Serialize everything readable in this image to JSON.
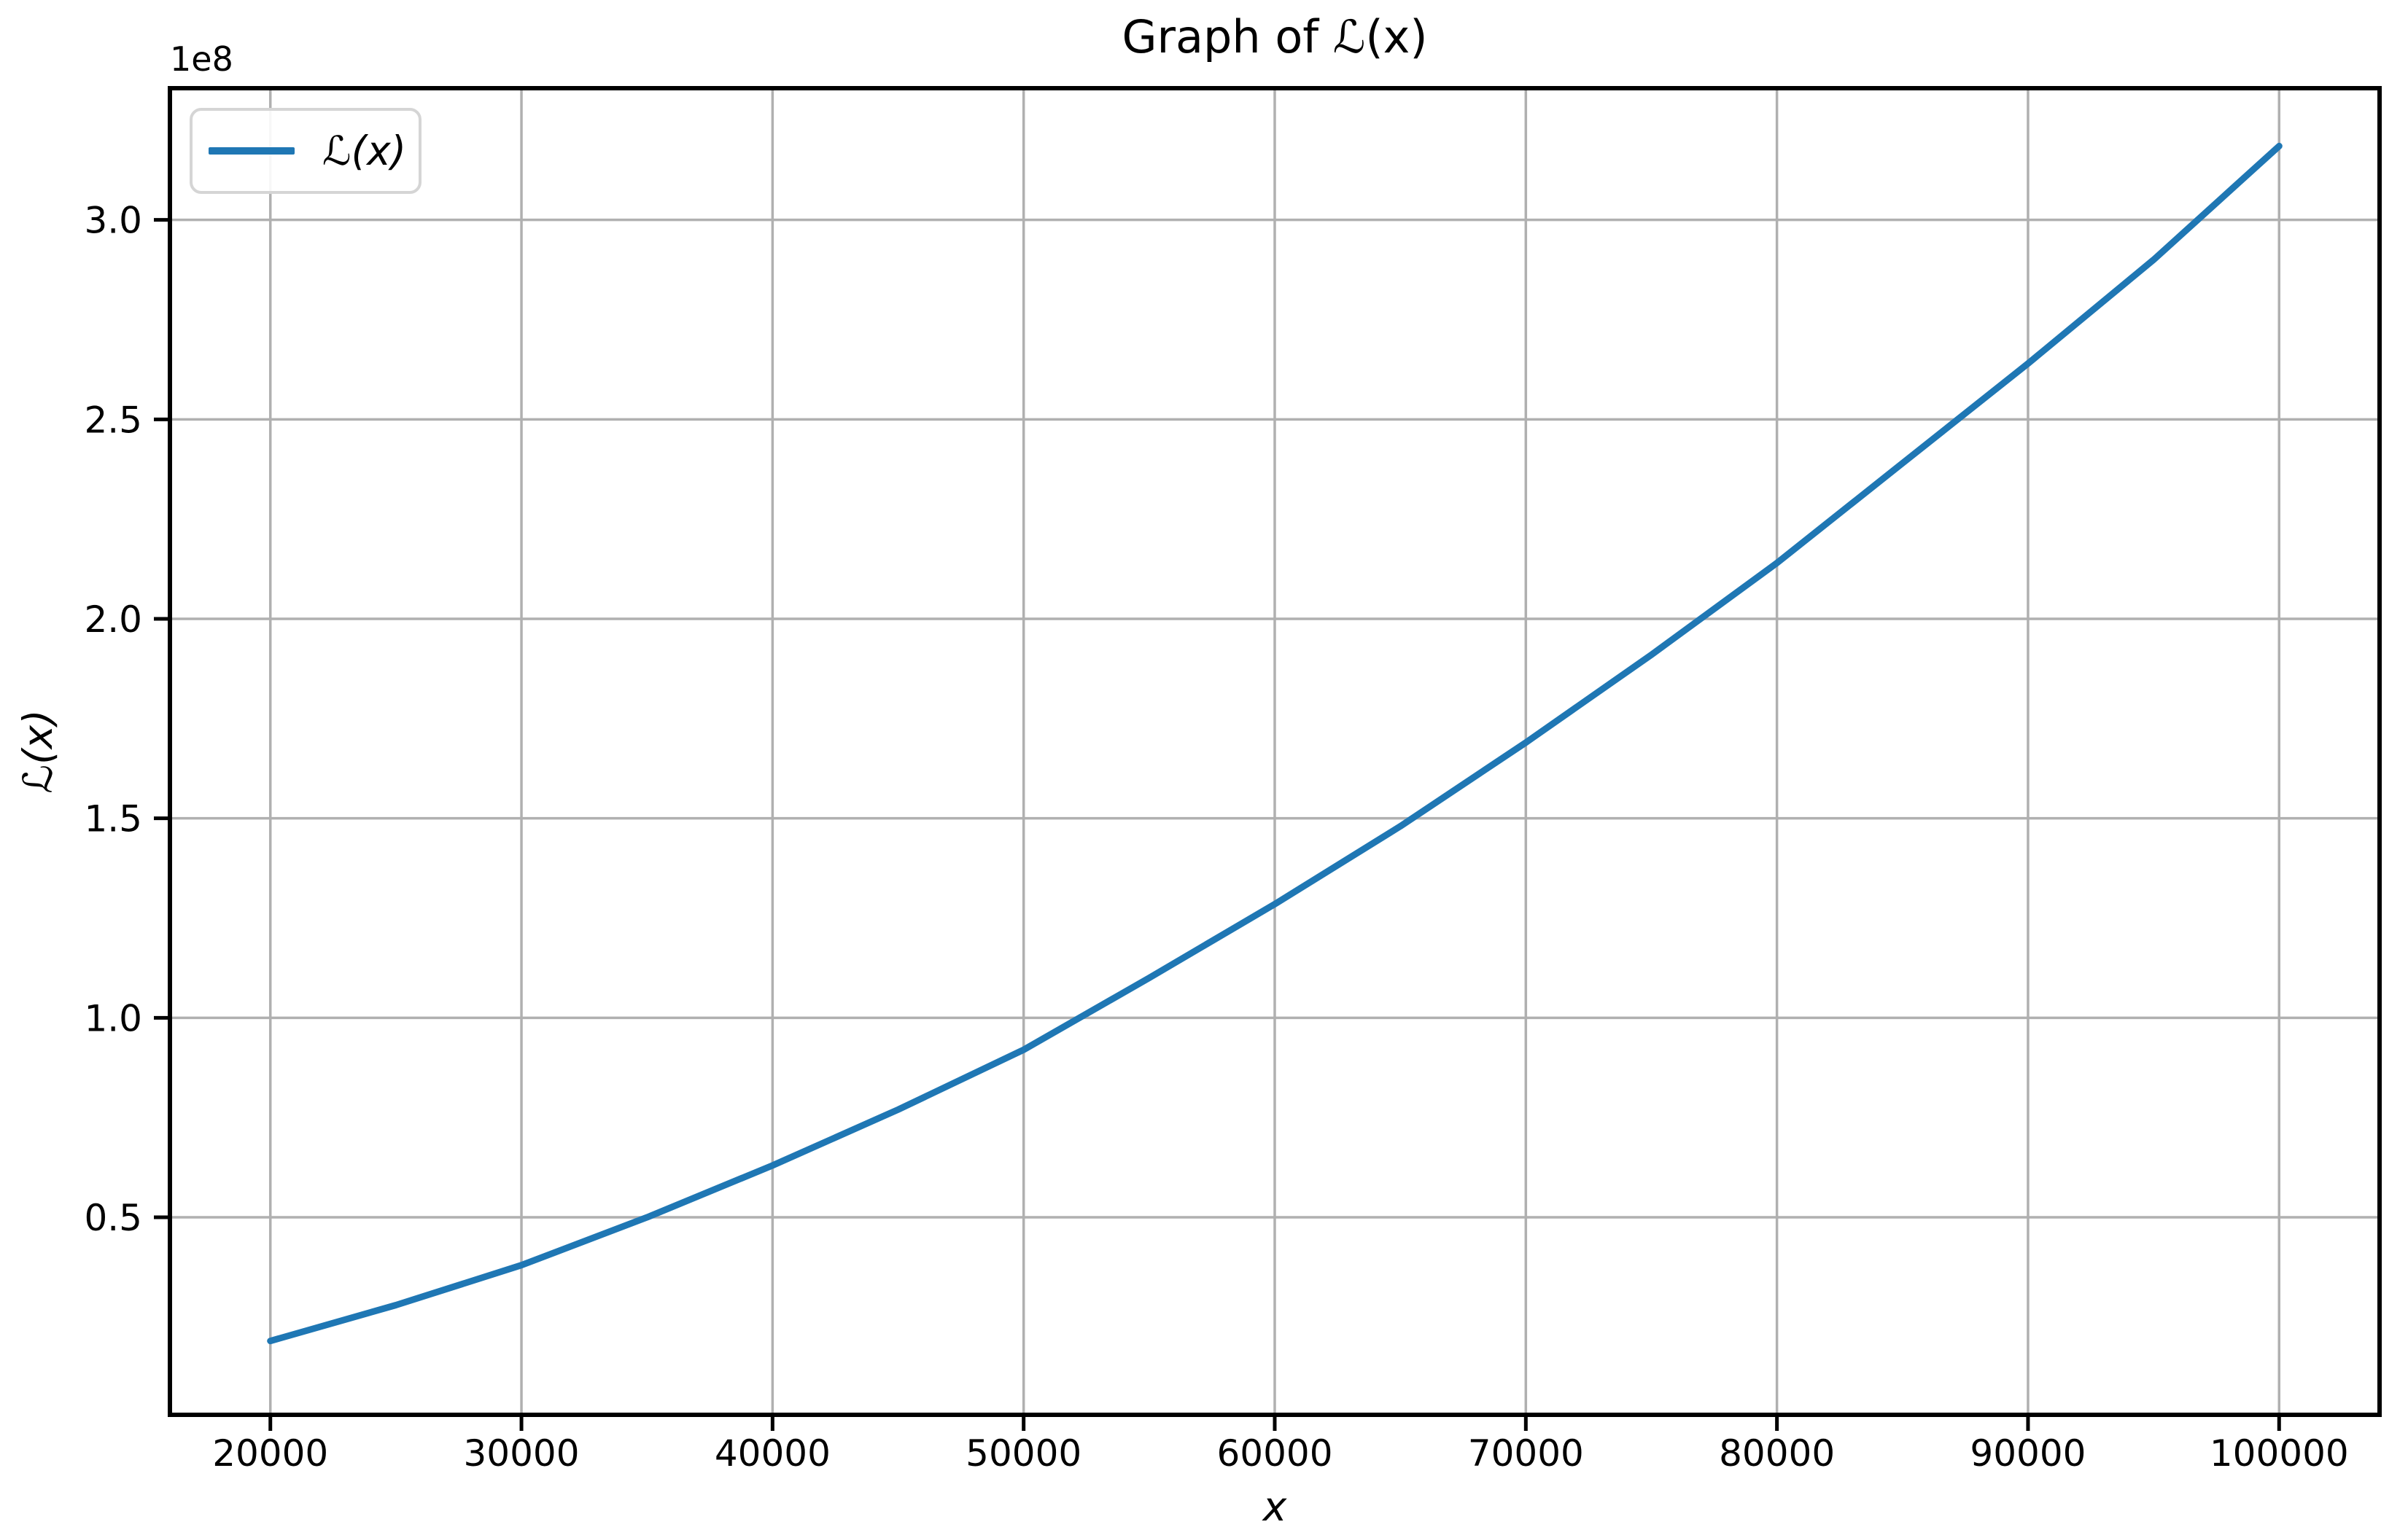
{
  "figure": {
    "title": "Graph of ℒ(x)",
    "offset_text": "1e8",
    "x_axis_label": "x",
    "y_axis_label": "ℒ(x)",
    "legend": {
      "position": "upper left",
      "entries": [
        {
          "label": "ℒ(x)",
          "color": "#1f77b4"
        }
      ]
    }
  },
  "colors": {
    "line": "#1f77b4",
    "grid": "#b0b0b0",
    "spine": "#000000",
    "text": "#000000",
    "legend_border": "#d5d5d5",
    "background": "#ffffff"
  },
  "chart_data": {
    "type": "line",
    "title": "Graph of ℒ(x)",
    "xlabel": "x",
    "ylabel": "ℒ(x)",
    "y_offset_factor": "1e8",
    "grid": true,
    "legend_position": "upper left",
    "xlim": [
      16000,
      104000
    ],
    "ylim": [
      500000,
      333000000
    ],
    "x_ticks": {
      "values": [
        20000,
        30000,
        40000,
        50000,
        60000,
        70000,
        80000,
        90000,
        100000
      ],
      "labels": [
        "20000",
        "30000",
        "40000",
        "50000",
        "60000",
        "70000",
        "80000",
        "90000",
        "100000"
      ]
    },
    "y_ticks": {
      "values": [
        50000000,
        100000000,
        150000000,
        200000000,
        250000000,
        300000000
      ],
      "labels": [
        "0.5",
        "1.0",
        "1.5",
        "2.0",
        "2.5",
        "3.0"
      ]
    },
    "series": [
      {
        "name": "ℒ(x)",
        "color": "#1f77b4",
        "x": [
          20000,
          25000,
          30000,
          35000,
          40000,
          45000,
          50000,
          55000,
          60000,
          65000,
          70000,
          75000,
          80000,
          85000,
          90000,
          95000,
          100000
        ],
        "y": [
          19000000,
          28000000,
          38000000,
          50000000,
          63000000,
          77000000,
          92000000,
          110000000,
          128500000,
          148000000,
          169000000,
          191000000,
          214000000,
          239000000,
          264000000,
          290000000,
          318500000
        ]
      }
    ]
  }
}
